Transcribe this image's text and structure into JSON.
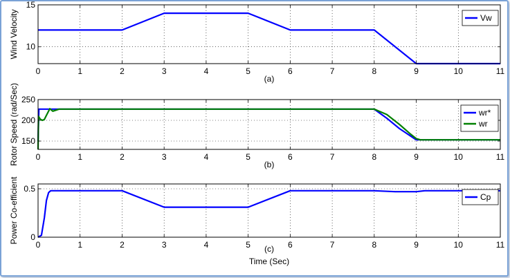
{
  "chart_data": [
    {
      "type": "line",
      "panel_label": "(a)",
      "xlabel": "",
      "ylabel": "Wind Velocity",
      "xlim": [
        0,
        11
      ],
      "ylim": [
        8,
        15
      ],
      "xticks": [
        0,
        1,
        2,
        3,
        4,
        5,
        6,
        7,
        8,
        9,
        10,
        11
      ],
      "yticks": [
        10,
        15
      ],
      "grid": true,
      "legend": "top-right",
      "series": [
        {
          "name": "Vw",
          "color": "#0000ff",
          "x": [
            0,
            2,
            3,
            5,
            6,
            8,
            9,
            11
          ],
          "y": [
            12,
            12,
            14,
            14,
            12,
            12,
            8,
            8
          ]
        }
      ]
    },
    {
      "type": "line",
      "panel_label": "(b)",
      "xlabel": "",
      "ylabel": "Rotor Speed (rad/Sec)",
      "xlim": [
        0,
        11
      ],
      "ylim": [
        130,
        250
      ],
      "xticks": [
        0,
        1,
        2,
        3,
        4,
        5,
        6,
        7,
        8,
        9,
        10,
        11
      ],
      "yticks": [
        150,
        200,
        250
      ],
      "grid": true,
      "legend": "top-right",
      "series": [
        {
          "name": "wr*",
          "color": "#0000ff",
          "x": [
            0,
            0.02,
            8,
            8.3,
            8.6,
            9,
            11
          ],
          "y": [
            150,
            227,
            227,
            205,
            180,
            153,
            153
          ]
        },
        {
          "name": "wr",
          "color": "#008000",
          "x": [
            0,
            0.01,
            0.05,
            0.1,
            0.15,
            0.2,
            0.28,
            0.35,
            0.5,
            8,
            8.3,
            8.6,
            8.85,
            9.0,
            9.1,
            11
          ],
          "y": [
            130,
            210,
            203,
            200,
            202,
            212,
            228,
            222,
            227,
            227,
            214,
            190,
            168,
            156,
            153,
            153
          ]
        }
      ]
    },
    {
      "type": "line",
      "panel_label": "(c)",
      "xlabel": "Time (Sec)",
      "ylabel": "Power Co-efficient",
      "xlim": [
        0,
        11
      ],
      "ylim": [
        0,
        0.55
      ],
      "xticks": [
        0,
        1,
        2,
        3,
        4,
        5,
        6,
        7,
        8,
        9,
        10,
        11
      ],
      "yticks": [
        0,
        0.5
      ],
      "grid": true,
      "legend": "top-right",
      "series": [
        {
          "name": "Cp",
          "color": "#0000ff",
          "x": [
            0,
            0.08,
            0.15,
            0.2,
            0.25,
            0.3,
            2,
            3,
            5,
            6,
            8,
            8.5,
            9,
            9.2,
            11
          ],
          "y": [
            0,
            0.02,
            0.2,
            0.38,
            0.46,
            0.48,
            0.48,
            0.31,
            0.31,
            0.48,
            0.48,
            0.47,
            0.47,
            0.48,
            0.48
          ]
        }
      ]
    }
  ]
}
